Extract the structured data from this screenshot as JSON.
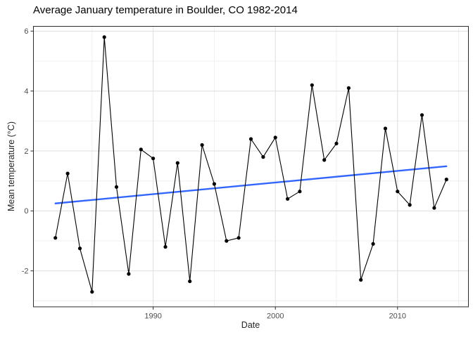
{
  "title": "Average January temperature in Boulder, CO 1982-2014",
  "x_axis": {
    "label": "Date",
    "major_ticks": [
      1990,
      2000,
      2010
    ],
    "major_tick_labels": [
      "1990",
      "2000",
      "2010"
    ],
    "minor_ticks": [
      1985,
      1995,
      2005,
      2015
    ],
    "lim": [
      1980.2,
      2015.8
    ]
  },
  "y_axis": {
    "label": "Mean temperature (°C)",
    "major_ticks": [
      -2,
      0,
      2,
      4,
      6
    ],
    "major_tick_labels": [
      "-2",
      "0",
      "2",
      "4",
      "6"
    ],
    "minor_ticks": [
      -3,
      -1,
      1,
      3,
      5
    ],
    "lim": [
      -3.2,
      6.16
    ]
  },
  "chart_data": {
    "type": "line",
    "title": "Average January temperature in Boulder, CO 1982-2014",
    "xlabel": "Date",
    "ylabel": "Mean temperature (°C)",
    "xlim": [
      1980.2,
      2015.8
    ],
    "ylim": [
      -3.2,
      6.16
    ],
    "grid": true,
    "legend_position": "none",
    "markers": true,
    "x": [
      1982,
      1983,
      1984,
      1985,
      1986,
      1987,
      1988,
      1989,
      1990,
      1991,
      1992,
      1993,
      1994,
      1995,
      1996,
      1997,
      1998,
      1999,
      2000,
      2001,
      2002,
      2003,
      2004,
      2005,
      2006,
      2007,
      2008,
      2009,
      2010,
      2011,
      2012,
      2013,
      2014
    ],
    "values": [
      -0.9,
      1.25,
      -1.25,
      -2.7,
      5.8,
      0.8,
      -2.1,
      2.05,
      1.75,
      -1.2,
      1.6,
      -2.35,
      2.2,
      0.9,
      -1.0,
      -0.9,
      2.4,
      1.8,
      2.45,
      0.4,
      0.65,
      4.2,
      1.7,
      2.25,
      4.1,
      -2.3,
      -1.1,
      2.75,
      0.65,
      0.2,
      3.2,
      0.1,
      1.05
    ],
    "series_name": "mean-january-temperature",
    "trend": {
      "type": "linear-fit",
      "x": [
        1982,
        2014
      ],
      "values": [
        0.25,
        1.49
      ],
      "color": "#3366FF"
    },
    "colors": {
      "points": "#000000",
      "line": "#000000",
      "trend": "#3366FF",
      "panel_border": "#2b2b2b",
      "grid_major": "#dedede",
      "grid_minor": "#efefef",
      "tick_text": "#4d4d4d",
      "background": "#ffffff"
    }
  }
}
